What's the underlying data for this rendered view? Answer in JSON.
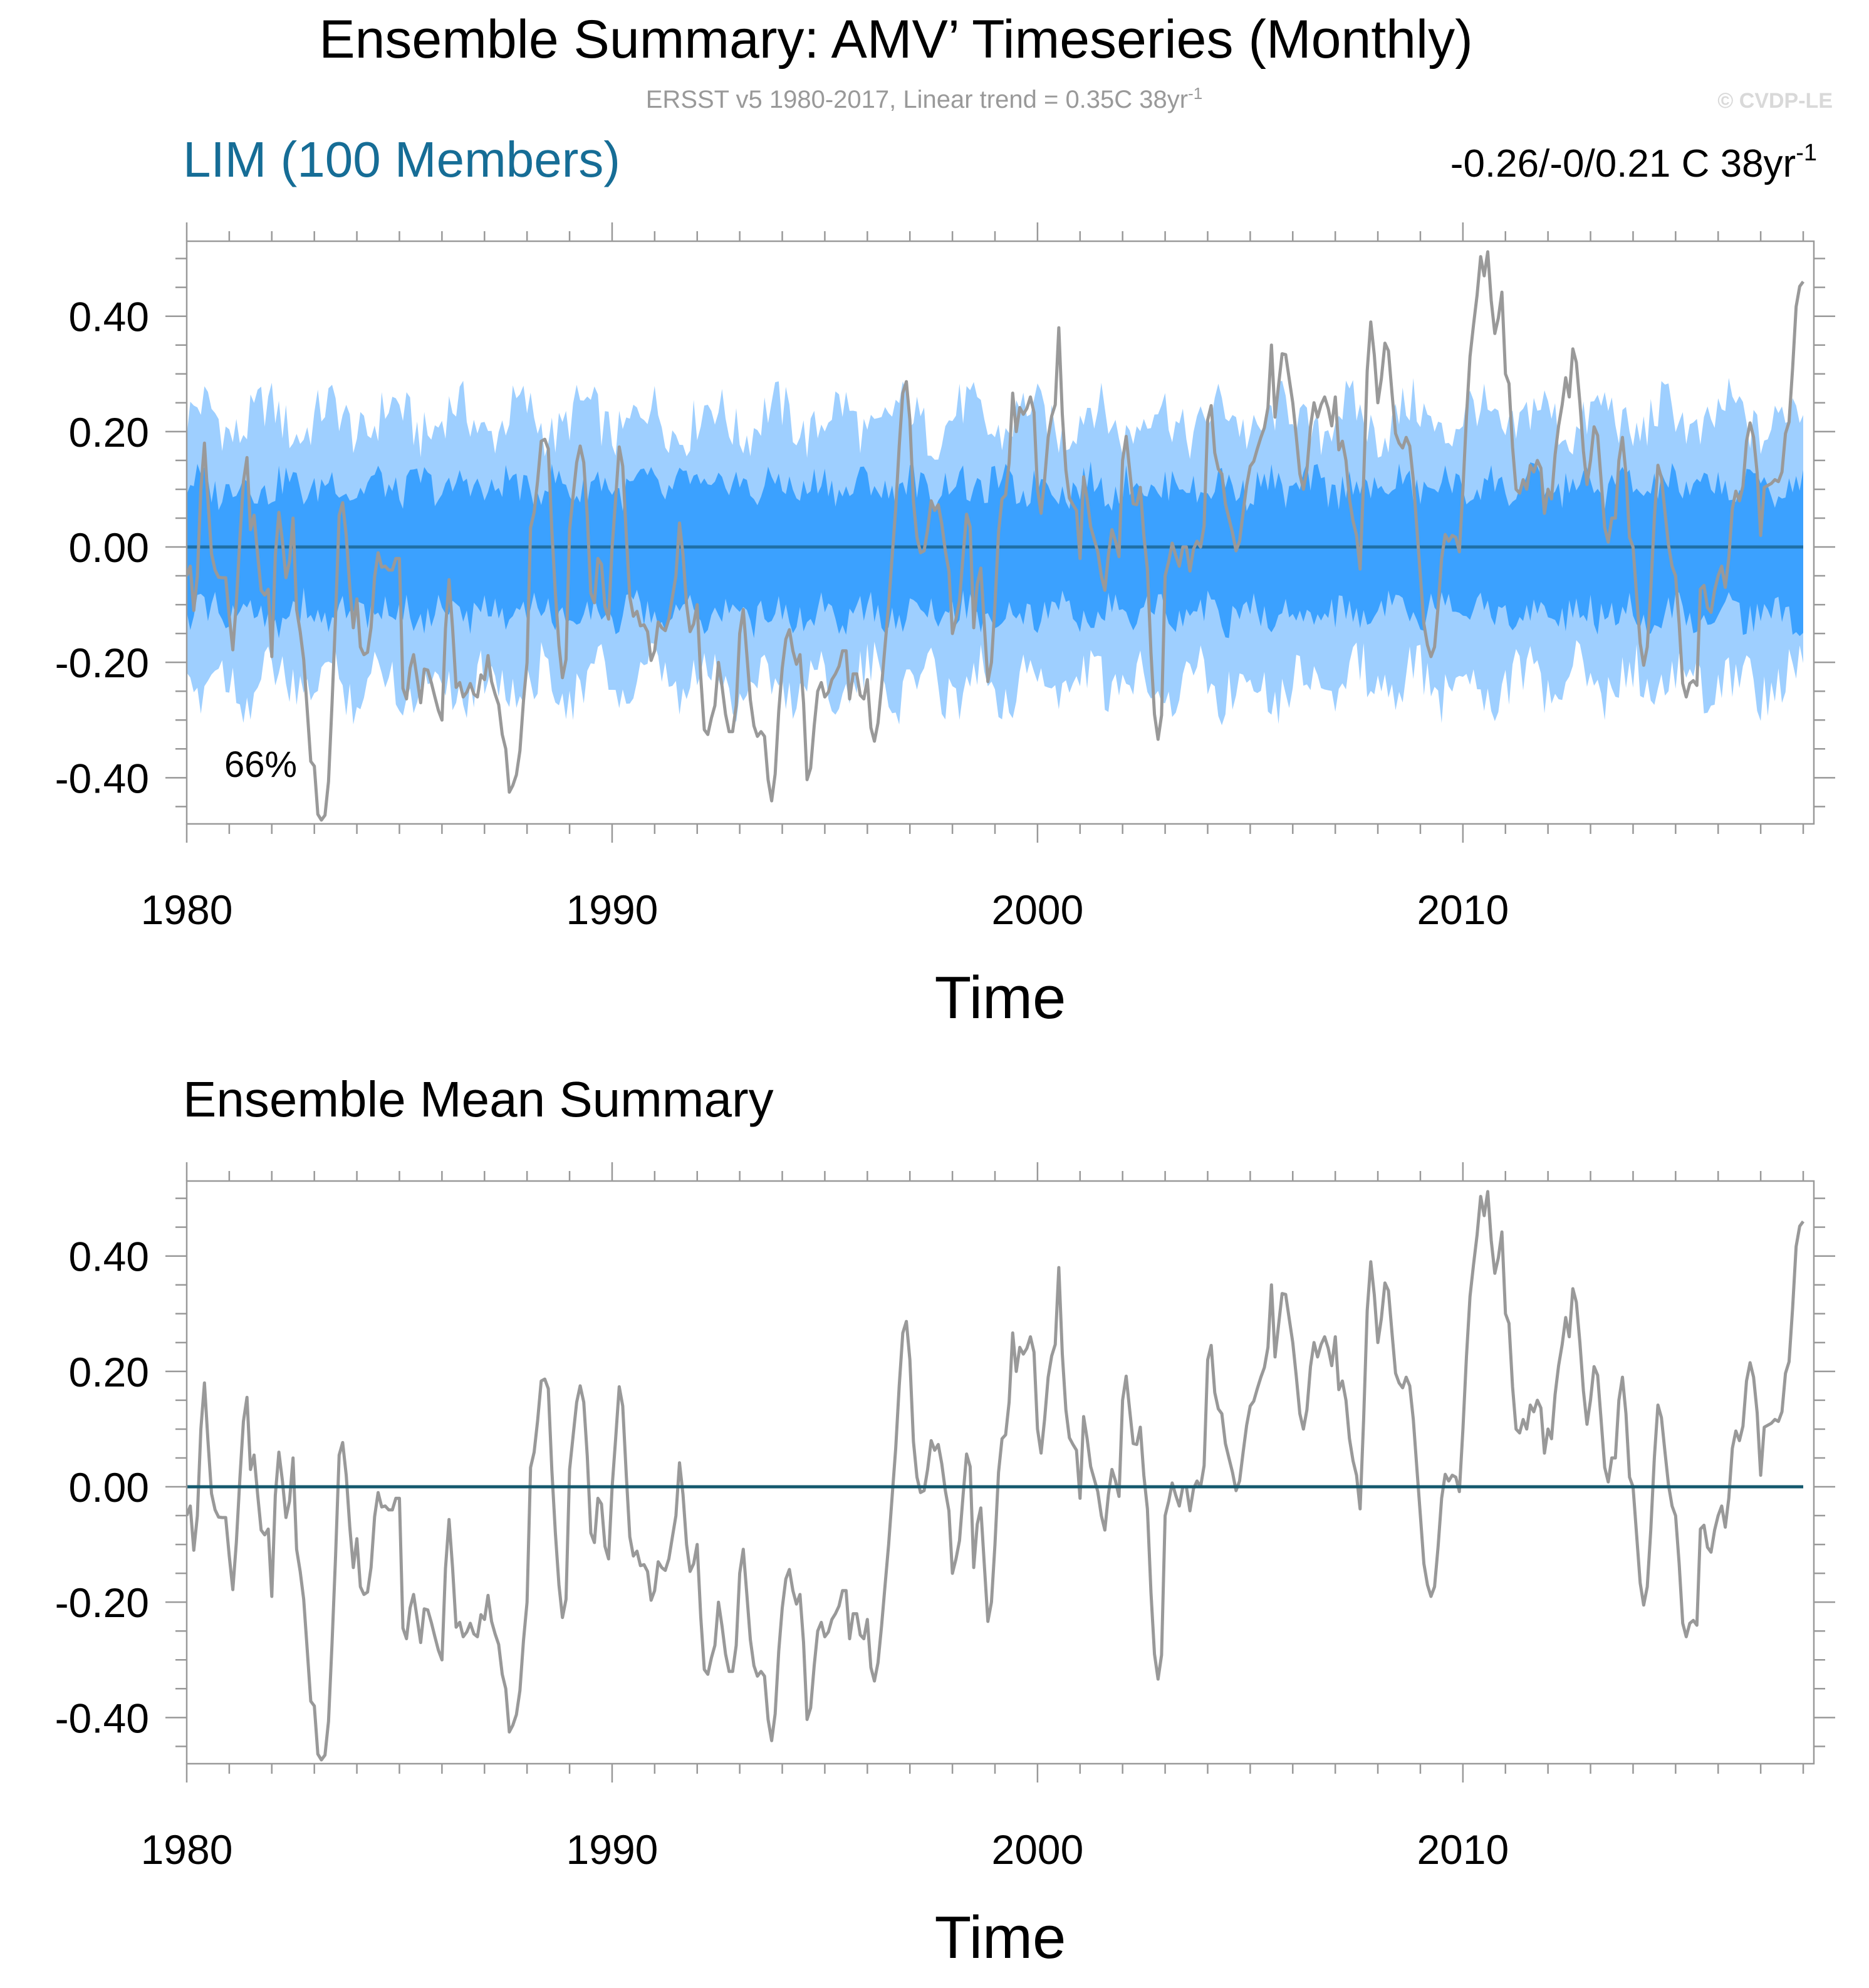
{
  "header": {
    "title": "Ensemble Summary: AMV’ Timeseries (Monthly)",
    "subtitle": "ERSST v5 1980-2017, Linear trend = 0.35C 38yr",
    "subtitle_sup": "-1",
    "watermark": "© CVDP-LE"
  },
  "chart_data": [
    {
      "type": "area",
      "title": "LIM (100 Members)",
      "right_label": "-0.26/-0/0.21 C 38yr",
      "right_label_sup": "-1",
      "annotation": "66%",
      "xlabel": "Time",
      "ylabel": "",
      "xlim": [
        1980,
        2018.25
      ],
      "ylim": [
        -0.48,
        0.53
      ],
      "x_ticks": [
        "1980",
        "1990",
        "2000",
        "2010"
      ],
      "y_ticks": [
        "0.40",
        "0.20",
        "0.00",
        "-0.20",
        "-0.40"
      ],
      "grid": false,
      "legend": "none",
      "series": [
        {
          "name": "",
          "role": "outer band 10-90%",
          "color": "#9ecfff"
        },
        {
          "name": "",
          "role": "inner band 25-75%",
          "color": "#3ba1ff"
        },
        {
          "name": "",
          "role": "ensemble median",
          "color": "#1f6fa8"
        },
        {
          "name": "",
          "role": "observations",
          "color": "#999999"
        }
      ]
    },
    {
      "type": "line",
      "title": "Ensemble Mean Summary",
      "xlabel": "Time",
      "ylabel": "",
      "xlim": [
        1980,
        2018.25
      ],
      "ylim": [
        -0.48,
        0.53
      ],
      "x_ticks": [
        "1980",
        "1990",
        "2000",
        "2010"
      ],
      "y_ticks": [
        "0.40",
        "0.20",
        "0.00",
        "-0.20",
        "-0.40"
      ],
      "grid": false,
      "legend": "none",
      "series": [
        {
          "name": "",
          "role": "ensemble mean",
          "color": "#14596e"
        },
        {
          "name": "",
          "role": "observations",
          "color": "#999999"
        }
      ]
    }
  ],
  "obs_series": {
    "x_start": 1980.0,
    "x_end": 2018.0,
    "key_points": [
      [
        1980.0,
        -0.05
      ],
      [
        1980.1,
        -0.03
      ],
      [
        1980.2,
        -0.15
      ],
      [
        1980.3,
        0.05
      ],
      [
        1980.4,
        0.2
      ],
      [
        1980.5,
        0.08
      ],
      [
        1980.6,
        -0.03
      ],
      [
        1980.8,
        -0.06
      ],
      [
        1980.9,
        -0.04
      ],
      [
        1981.0,
        -0.12
      ],
      [
        1981.1,
        -0.19
      ],
      [
        1981.2,
        -0.05
      ],
      [
        1981.3,
        0.08
      ],
      [
        1981.4,
        0.18
      ],
      [
        1981.5,
        0.03
      ],
      [
        1981.6,
        0.06
      ],
      [
        1981.7,
        -0.05
      ],
      [
        1981.8,
        -0.1
      ],
      [
        1981.9,
        -0.05
      ],
      [
        1982.0,
        -0.19
      ],
      [
        1982.1,
        0.02
      ],
      [
        1982.2,
        0.08
      ],
      [
        1982.3,
        -0.06
      ],
      [
        1982.4,
        -0.04
      ],
      [
        1982.5,
        0.05
      ],
      [
        1982.6,
        -0.14
      ],
      [
        1982.7,
        -0.15
      ],
      [
        1982.8,
        -0.24
      ],
      [
        1982.9,
        -0.37
      ],
      [
        1983.0,
        -0.38
      ],
      [
        1983.1,
        -0.48
      ],
      [
        1983.2,
        -0.47
      ],
      [
        1983.3,
        -0.46
      ],
      [
        1983.4,
        -0.3
      ],
      [
        1983.5,
        -0.12
      ],
      [
        1983.6,
        0.09
      ],
      [
        1983.7,
        0.07
      ],
      [
        1983.8,
        -0.03
      ],
      [
        1983.9,
        -0.15
      ],
      [
        1984.0,
        -0.09
      ],
      [
        1984.1,
        -0.19
      ],
      [
        1984.3,
        -0.18
      ],
      [
        1984.4,
        -0.06
      ],
      [
        1984.5,
        -0.01
      ],
      [
        1984.6,
        -0.04
      ],
      [
        1984.7,
        -0.03
      ],
      [
        1984.8,
        -0.05
      ],
      [
        1984.9,
        -0.02
      ],
      [
        1985.0,
        -0.02
      ],
      [
        1985.1,
        -0.29
      ],
      [
        1985.2,
        -0.25
      ],
      [
        1985.3,
        -0.17
      ],
      [
        1985.4,
        -0.22
      ],
      [
        1985.5,
        -0.27
      ],
      [
        1985.6,
        -0.2
      ],
      [
        1985.7,
        -0.22
      ],
      [
        1985.8,
        -0.25
      ],
      [
        1985.9,
        -0.28
      ],
      [
        1986.0,
        -0.3
      ],
      [
        1986.1,
        -0.11
      ],
      [
        1986.2,
        -0.03
      ],
      [
        1986.3,
        -0.25
      ],
      [
        1986.4,
        -0.23
      ],
      [
        1986.5,
        -0.26
      ],
      [
        1986.6,
        -0.25
      ],
      [
        1986.7,
        -0.23
      ],
      [
        1986.8,
        -0.28
      ],
      [
        1986.9,
        -0.22
      ],
      [
        1987.0,
        -0.23
      ],
      [
        1987.1,
        -0.18
      ],
      [
        1987.2,
        -0.26
      ],
      [
        1987.3,
        -0.25
      ],
      [
        1987.4,
        -0.32
      ],
      [
        1987.5,
        -0.35
      ],
      [
        1987.6,
        -0.44
      ],
      [
        1987.7,
        -0.4
      ],
      [
        1987.8,
        -0.39
      ],
      [
        1987.9,
        -0.28
      ],
      [
        1988.0,
        -0.2
      ],
      [
        1988.1,
        0.08
      ],
      [
        1988.2,
        0.05
      ],
      [
        1988.3,
        0.18
      ],
      [
        1988.4,
        0.19
      ],
      [
        1988.5,
        0.17
      ],
      [
        1988.6,
        0.0
      ],
      [
        1988.7,
        -0.12
      ],
      [
        1988.8,
        -0.22
      ],
      [
        1988.9,
        -0.24
      ],
      [
        1989.0,
        0.03
      ],
      [
        1989.1,
        0.1
      ],
      [
        1989.2,
        0.17
      ],
      [
        1989.3,
        0.18
      ],
      [
        1989.4,
        0.08
      ],
      [
        1989.5,
        -0.08
      ],
      [
        1989.6,
        -0.1
      ],
      [
        1989.7,
        0.02
      ],
      [
        1989.8,
        -0.08
      ],
      [
        1989.9,
        -0.15
      ],
      [
        1990.0,
        0.0
      ],
      [
        1990.1,
        0.1
      ],
      [
        1990.2,
        0.21
      ],
      [
        1990.3,
        0.07
      ],
      [
        1990.4,
        -0.08
      ],
      [
        1990.5,
        -0.12
      ],
      [
        1990.6,
        -0.11
      ],
      [
        1990.7,
        -0.15
      ],
      [
        1990.8,
        -0.12
      ],
      [
        1990.9,
        -0.2
      ],
      [
        1991.0,
        -0.18
      ],
      [
        1991.1,
        -0.12
      ],
      [
        1991.2,
        -0.15
      ],
      [
        1991.3,
        -0.14
      ],
      [
        1991.5,
        -0.05
      ],
      [
        1991.6,
        0.06
      ],
      [
        1991.7,
        -0.05
      ],
      [
        1991.8,
        -0.15
      ],
      [
        1991.9,
        -0.14
      ],
      [
        1992.0,
        -0.1
      ],
      [
        1992.1,
        -0.25
      ],
      [
        1992.2,
        -0.35
      ],
      [
        1992.3,
        -0.3
      ],
      [
        1992.4,
        -0.29
      ],
      [
        1992.5,
        -0.2
      ],
      [
        1992.6,
        -0.25
      ],
      [
        1992.7,
        -0.31
      ],
      [
        1992.8,
        -0.33
      ],
      [
        1992.9,
        -0.3
      ],
      [
        1993.0,
        -0.15
      ],
      [
        1993.1,
        -0.1
      ],
      [
        1993.2,
        -0.23
      ],
      [
        1993.3,
        -0.3
      ],
      [
        1993.4,
        -0.33
      ],
      [
        1993.5,
        -0.32
      ],
      [
        1993.6,
        -0.33
      ],
      [
        1993.7,
        -0.44
      ],
      [
        1993.8,
        -0.44
      ],
      [
        1993.9,
        -0.3
      ],
      [
        1994.0,
        -0.21
      ],
      [
        1994.1,
        -0.15
      ],
      [
        1994.2,
        -0.14
      ],
      [
        1994.3,
        -0.22
      ],
      [
        1994.4,
        -0.17
      ],
      [
        1994.5,
        -0.27
      ],
      [
        1994.6,
        -0.43
      ],
      [
        1994.7,
        -0.36
      ],
      [
        1994.8,
        -0.26
      ],
      [
        1994.9,
        -0.23
      ],
      [
        1995.0,
        -0.26
      ],
      [
        1995.1,
        -0.25
      ],
      [
        1995.2,
        -0.22
      ],
      [
        1995.3,
        -0.22
      ],
      [
        1995.4,
        -0.18
      ],
      [
        1995.5,
        -0.18
      ],
      [
        1995.6,
        -0.28
      ],
      [
        1995.7,
        -0.19
      ],
      [
        1995.8,
        -0.25
      ],
      [
        1995.9,
        -0.27
      ],
      [
        1996.0,
        -0.23
      ],
      [
        1996.1,
        -0.33
      ],
      [
        1996.2,
        -0.34
      ],
      [
        1996.3,
        -0.27
      ],
      [
        1996.5,
        -0.1
      ],
      [
        1996.6,
        0.0
      ],
      [
        1996.7,
        0.1
      ],
      [
        1996.8,
        0.25
      ],
      [
        1996.9,
        0.3
      ],
      [
        1997.0,
        0.22
      ],
      [
        1997.1,
        0.05
      ],
      [
        1997.2,
        0.0
      ],
      [
        1997.3,
        -0.02
      ],
      [
        1997.4,
        0.02
      ],
      [
        1997.5,
        0.08
      ],
      [
        1997.6,
        0.06
      ],
      [
        1997.7,
        0.08
      ],
      [
        1997.8,
        0.0
      ],
      [
        1997.9,
        -0.02
      ],
      [
        1998.0,
        -0.15
      ],
      [
        1998.1,
        -0.12
      ],
      [
        1998.2,
        -0.08
      ],
      [
        1998.3,
        0.05
      ],
      [
        1998.4,
        0.07
      ],
      [
        1998.5,
        -0.14
      ],
      [
        1998.6,
        -0.05
      ],
      [
        1998.7,
        -0.03
      ],
      [
        1998.8,
        -0.24
      ],
      [
        1998.9,
        -0.22
      ],
      [
        1999.0,
        -0.1
      ],
      [
        1999.1,
        0.05
      ],
      [
        1999.2,
        0.1
      ],
      [
        1999.3,
        0.08
      ],
      [
        1999.4,
        0.28
      ],
      [
        1999.5,
        0.2
      ],
      [
        1999.6,
        0.25
      ],
      [
        1999.7,
        0.22
      ],
      [
        1999.8,
        0.26
      ],
      [
        1999.9,
        0.26
      ],
      [
        2000.0,
        0.1
      ],
      [
        2000.1,
        0.05
      ],
      [
        2000.2,
        0.15
      ],
      [
        2000.3,
        0.23
      ],
      [
        2000.4,
        0.22
      ],
      [
        2000.5,
        0.38
      ],
      [
        2000.6,
        0.2
      ],
      [
        2000.7,
        0.1
      ],
      [
        2000.8,
        0.07
      ],
      [
        2000.9,
        0.08
      ],
      [
        2001.0,
        -0.02
      ],
      [
        2001.1,
        0.15
      ],
      [
        2001.2,
        0.05
      ],
      [
        2001.3,
        0.02
      ],
      [
        2001.4,
        0.0
      ],
      [
        2001.5,
        -0.05
      ],
      [
        2001.6,
        -0.08
      ],
      [
        2001.7,
        0.02
      ],
      [
        2001.8,
        0.04
      ],
      [
        2001.9,
        -0.05
      ],
      [
        2002.0,
        0.15
      ],
      [
        2002.1,
        0.2
      ],
      [
        2002.2,
        0.1
      ],
      [
        2002.3,
        0.05
      ],
      [
        2002.4,
        0.12
      ],
      [
        2002.5,
        0.02
      ],
      [
        2002.6,
        -0.05
      ],
      [
        2002.7,
        -0.25
      ],
      [
        2002.8,
        -0.33
      ],
      [
        2002.9,
        -0.34
      ],
      [
        2003.0,
        -0.05
      ],
      [
        2003.1,
        -0.02
      ],
      [
        2003.2,
        0.02
      ],
      [
        2003.3,
        -0.05
      ],
      [
        2003.4,
        0.0
      ],
      [
        2003.5,
        0.0
      ],
      [
        2003.6,
        -0.05
      ],
      [
        2003.7,
        0.02
      ],
      [
        2003.8,
        0.0
      ],
      [
        2003.9,
        0.0
      ],
      [
        2004.0,
        0.22
      ],
      [
        2004.1,
        0.25
      ],
      [
        2004.2,
        0.12
      ],
      [
        2004.3,
        0.15
      ],
      [
        2004.4,
        0.08
      ],
      [
        2004.5,
        0.05
      ],
      [
        2004.6,
        0.02
      ],
      [
        2004.7,
        -0.02
      ],
      [
        2004.8,
        0.04
      ],
      [
        2004.9,
        0.1
      ],
      [
        2005.0,
        0.14
      ],
      [
        2005.1,
        0.15
      ],
      [
        2005.2,
        0.18
      ],
      [
        2005.3,
        0.2
      ],
      [
        2005.4,
        0.22
      ],
      [
        2005.5,
        0.35
      ],
      [
        2005.6,
        0.2
      ],
      [
        2005.7,
        0.32
      ],
      [
        2005.8,
        0.35
      ],
      [
        2005.9,
        0.3
      ],
      [
        2006.0,
        0.25
      ],
      [
        2006.1,
        0.18
      ],
      [
        2006.2,
        0.1
      ],
      [
        2006.3,
        0.1
      ],
      [
        2006.4,
        0.2
      ],
      [
        2006.5,
        0.25
      ],
      [
        2006.6,
        0.22
      ],
      [
        2006.7,
        0.26
      ],
      [
        2006.8,
        0.26
      ],
      [
        2006.9,
        0.2
      ],
      [
        2007.0,
        0.26
      ],
      [
        2007.1,
        0.15
      ],
      [
        2007.2,
        0.2
      ],
      [
        2007.3,
        0.1
      ],
      [
        2007.4,
        0.05
      ],
      [
        2007.5,
        0.02
      ],
      [
        2007.6,
        -0.05
      ],
      [
        2007.7,
        0.2
      ],
      [
        2007.8,
        0.41
      ],
      [
        2007.9,
        0.35
      ],
      [
        2008.0,
        0.25
      ],
      [
        2008.1,
        0.3
      ],
      [
        2008.2,
        0.38
      ],
      [
        2008.3,
        0.3
      ],
      [
        2008.4,
        0.2
      ],
      [
        2008.5,
        0.18
      ],
      [
        2008.6,
        0.17
      ],
      [
        2008.7,
        0.2
      ],
      [
        2008.8,
        0.15
      ],
      [
        2008.9,
        0.05
      ],
      [
        2009.0,
        -0.05
      ],
      [
        2009.1,
        -0.15
      ],
      [
        2009.2,
        -0.18
      ],
      [
        2009.3,
        -0.2
      ],
      [
        2009.4,
        -0.12
      ],
      [
        2009.5,
        -0.02
      ],
      [
        2009.6,
        0.03
      ],
      [
        2009.7,
        0.0
      ],
      [
        2009.8,
        0.04
      ],
      [
        2009.9,
        -0.03
      ],
      [
        2010.0,
        0.1
      ],
      [
        2010.1,
        0.25
      ],
      [
        2010.2,
        0.37
      ],
      [
        2010.3,
        0.4
      ],
      [
        2010.4,
        0.51
      ],
      [
        2010.5,
        0.47
      ],
      [
        2010.6,
        0.52
      ],
      [
        2010.7,
        0.38
      ],
      [
        2010.8,
        0.36
      ],
      [
        2010.9,
        0.47
      ],
      [
        2011.0,
        0.3
      ],
      [
        2011.1,
        0.28
      ],
      [
        2011.2,
        0.12
      ],
      [
        2011.3,
        0.08
      ],
      [
        2011.4,
        0.12
      ],
      [
        2011.5,
        0.1
      ],
      [
        2011.6,
        0.15
      ],
      [
        2011.7,
        0.12
      ],
      [
        2011.8,
        0.18
      ],
      [
        2011.9,
        0.05
      ],
      [
        2012.0,
        0.1
      ],
      [
        2012.1,
        0.08
      ],
      [
        2012.2,
        0.2
      ],
      [
        2012.3,
        0.22
      ],
      [
        2012.4,
        0.3
      ],
      [
        2012.5,
        0.26
      ],
      [
        2012.6,
        0.36
      ],
      [
        2012.7,
        0.3
      ],
      [
        2012.8,
        0.2
      ],
      [
        2012.9,
        0.1
      ],
      [
        2013.0,
        0.15
      ],
      [
        2013.1,
        0.22
      ],
      [
        2013.2,
        0.18
      ],
      [
        2013.3,
        0.05
      ],
      [
        2013.4,
        0.0
      ],
      [
        2013.5,
        0.05
      ],
      [
        2013.6,
        0.05
      ],
      [
        2013.7,
        0.2
      ],
      [
        2013.8,
        0.18
      ],
      [
        2013.9,
        0.02
      ],
      [
        2014.0,
        0.0
      ],
      [
        2014.1,
        -0.1
      ],
      [
        2014.2,
        -0.2
      ],
      [
        2014.3,
        -0.21
      ],
      [
        2014.4,
        -0.1
      ],
      [
        2014.5,
        0.05
      ],
      [
        2014.6,
        0.16
      ],
      [
        2014.7,
        0.1
      ],
      [
        2014.8,
        0.02
      ],
      [
        2014.9,
        -0.03
      ],
      [
        2015.0,
        -0.05
      ],
      [
        2015.1,
        -0.15
      ],
      [
        2015.2,
        -0.28
      ],
      [
        2015.3,
        -0.24
      ],
      [
        2015.4,
        -0.23
      ],
      [
        2015.5,
        -0.24
      ],
      [
        2015.6,
        -0.04
      ],
      [
        2015.7,
        -0.08
      ],
      [
        2015.8,
        -0.13
      ],
      [
        2015.9,
        -0.08
      ],
      [
        2016.0,
        -0.05
      ],
      [
        2016.1,
        -0.03
      ],
      [
        2016.2,
        -0.09
      ],
      [
        2016.3,
        0.05
      ],
      [
        2016.4,
        0.1
      ],
      [
        2016.5,
        0.08
      ],
      [
        2016.6,
        0.11
      ],
      [
        2016.7,
        0.22
      ],
      [
        2016.8,
        0.21
      ],
      [
        2016.9,
        0.15
      ],
      [
        2017.0,
        0.02
      ],
      [
        2017.1,
        0.12
      ],
      [
        2017.2,
        0.1
      ],
      [
        2017.3,
        0.12
      ],
      [
        2017.4,
        0.11
      ],
      [
        2017.5,
        0.13
      ],
      [
        2017.6,
        0.21
      ],
      [
        2017.7,
        0.22
      ],
      [
        2017.8,
        0.4
      ],
      [
        2017.9,
        0.45
      ],
      [
        2018.0,
        0.46
      ]
    ]
  }
}
